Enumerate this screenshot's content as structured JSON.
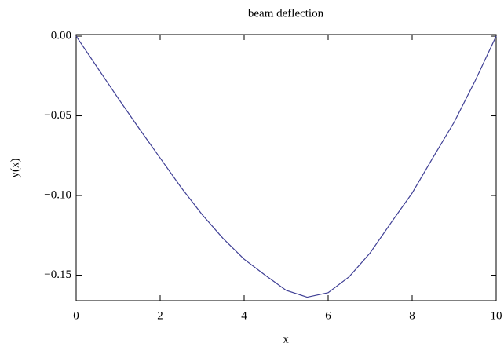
{
  "chart_data": {
    "type": "line",
    "title": "beam deflection",
    "x_label": "x",
    "y_label": "y(x)",
    "series": [
      {
        "name": "y(x)",
        "color": "#3f3f95",
        "x": [
          0,
          0.5,
          1,
          1.5,
          2,
          2.5,
          3,
          3.5,
          4,
          4.5,
          5,
          5.5,
          6,
          6.5,
          7,
          7.5,
          8,
          8.5,
          9,
          9.5,
          10
        ],
        "values": [
          0,
          -0.0195,
          -0.039,
          -0.058,
          -0.0765,
          -0.095,
          -0.112,
          -0.127,
          -0.14,
          -0.15,
          -0.1595,
          -0.1638,
          -0.161,
          -0.151,
          -0.136,
          -0.117,
          -0.0985,
          -0.076,
          -0.054,
          -0.028,
          0
        ]
      }
    ],
    "xlim": [
      0,
      10
    ],
    "xticks": [
      0,
      2,
      4,
      6,
      8,
      10
    ],
    "ylim": [
      -0.166,
      0.001
    ],
    "yticks": [
      {
        "value": 0,
        "label": "0.00"
      },
      {
        "value": -0.05,
        "label": "−0.05"
      },
      {
        "value": -0.1,
        "label": "−0.10"
      },
      {
        "value": -0.15,
        "label": "−0.15"
      }
    ]
  }
}
